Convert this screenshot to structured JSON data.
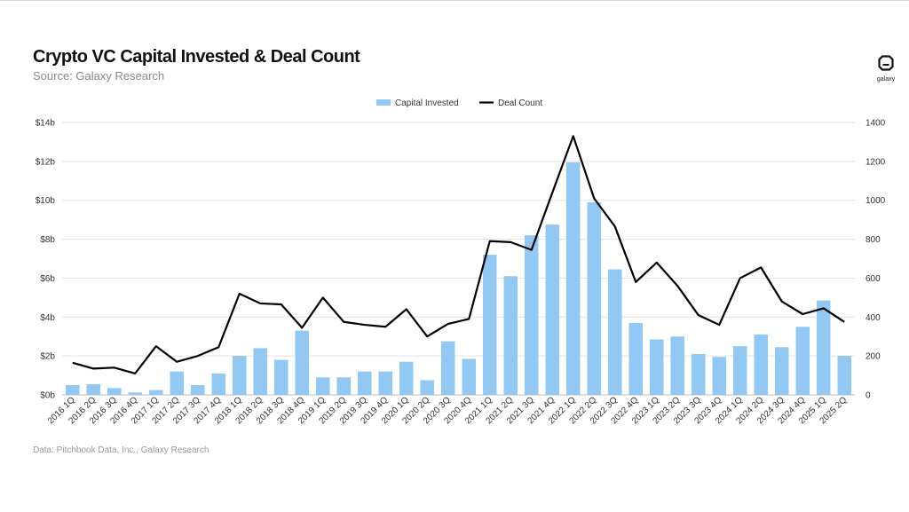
{
  "header": {
    "title": "Crypto VC Capital Invested & Deal Count",
    "subtitle": "Source: Galaxy Research",
    "logo_text": "galaxy"
  },
  "footer": {
    "source_note": "Data: Pitchbook Data, Inc., Galaxy Research"
  },
  "colors": {
    "bar": "#91C8F4",
    "line": "#000000",
    "grid": "#E3E3E3"
  },
  "icons": {
    "logo": "galaxy-logo-icon"
  },
  "chart_data": {
    "type": "bar",
    "legend_position": "top-center",
    "grid": true,
    "categories": [
      "2016 1Q",
      "2016 2Q",
      "2016 3Q",
      "2016 4Q",
      "2017 1Q",
      "2017 2Q",
      "2017 3Q",
      "2017 4Q",
      "2018 1Q",
      "2018 2Q",
      "2018 3Q",
      "2018 4Q",
      "2019 1Q",
      "2019 2Q",
      "2019 3Q",
      "2019 4Q",
      "2020 1Q",
      "2020 2Q",
      "2020 3Q",
      "2020 4Q",
      "2021 1Q",
      "2021 2Q",
      "2021 3Q",
      "2021 4Q",
      "2022 1Q",
      "2022 2Q",
      "2022 3Q",
      "2022 4Q",
      "2023 1Q",
      "2023 2Q",
      "2023 3Q",
      "2023 4Q",
      "2024 1Q",
      "2024 2Q",
      "2024 3Q",
      "2024 4Q",
      "2025 1Q",
      "2025 2Q"
    ],
    "left_axis": {
      "ylim": [
        0,
        14
      ],
      "ticks": [
        0,
        2,
        4,
        6,
        8,
        10,
        12,
        14
      ],
      "tick_labels": [
        "$0b",
        "$2b",
        "$4b",
        "$6b",
        "$8b",
        "$10b",
        "$12b",
        "$14b"
      ]
    },
    "right_axis": {
      "ylim": [
        0,
        1400
      ],
      "ticks": [
        0,
        200,
        400,
        600,
        800,
        1000,
        1200,
        1400
      ],
      "tick_labels": [
        "0",
        "200",
        "400",
        "600",
        "800",
        "1000",
        "1200",
        "1400"
      ]
    },
    "series": [
      {
        "name": "Capital Invested",
        "type": "bar",
        "axis": "left",
        "values": [
          0.5,
          0.55,
          0.35,
          0.12,
          0.25,
          1.2,
          0.5,
          1.1,
          2.0,
          2.4,
          1.8,
          3.3,
          0.9,
          0.9,
          1.2,
          1.2,
          1.7,
          0.75,
          2.75,
          1.85,
          7.2,
          6.1,
          8.2,
          8.75,
          11.95,
          9.9,
          6.45,
          3.7,
          2.85,
          3.0,
          2.1,
          1.95,
          2.5,
          3.1,
          2.45,
          3.5,
          4.85,
          2.0
        ]
      },
      {
        "name": "Deal Count",
        "type": "line",
        "axis": "right",
        "values": [
          165,
          135,
          140,
          110,
          250,
          170,
          200,
          245,
          520,
          470,
          465,
          345,
          500,
          375,
          360,
          350,
          440,
          300,
          365,
          390,
          790,
          785,
          745,
          1040,
          1330,
          1010,
          865,
          580,
          680,
          560,
          410,
          360,
          600,
          655,
          480,
          415,
          445,
          375
        ]
      }
    ]
  }
}
